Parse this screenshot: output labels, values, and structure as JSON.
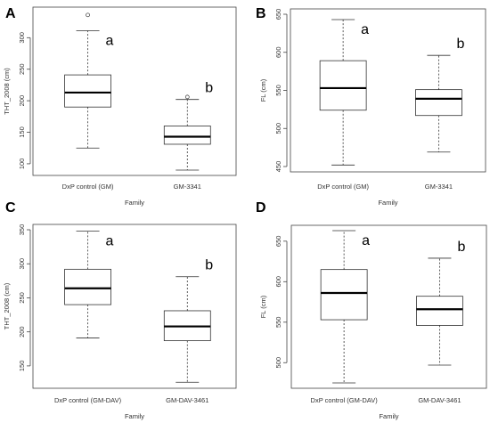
{
  "chart_data": [
    {
      "panel": "A",
      "type": "box",
      "xlabel": "Family",
      "ylabel": "THT_2008 (cm)",
      "categories": [
        "DxP control (GM)",
        "GM-3341"
      ],
      "yticks": [
        "100",
        "150",
        "200",
        "250",
        "300"
      ],
      "ylim": [
        90,
        340
      ],
      "boxes": [
        {
          "label": "DxP control (GM)",
          "whisker_low": 125,
          "q1": 190,
          "median": 213,
          "q3": 241,
          "whisker_high": 311,
          "outliers": [
            336
          ],
          "letter": "a"
        },
        {
          "label": "GM-3341",
          "whisker_low": 90,
          "q1": 131,
          "median": 143,
          "q3": 160,
          "whisker_high": 202,
          "outliers": [
            206
          ],
          "letter": "b"
        }
      ]
    },
    {
      "panel": "B",
      "type": "box",
      "xlabel": "Family",
      "ylabel": "FL (cm)",
      "categories": [
        "DxP control (GM)",
        "GM-3341"
      ],
      "yticks": [
        "450",
        "500",
        "550",
        "600",
        "650"
      ],
      "ylim": [
        450,
        650
      ],
      "boxes": [
        {
          "label": "DxP control (GM)",
          "whisker_low": 452,
          "q1": 524,
          "median": 553,
          "q3": 589,
          "whisker_high": 643,
          "outliers": [],
          "letter": "a"
        },
        {
          "label": "GM-3341",
          "whisker_low": 469,
          "q1": 517,
          "median": 539,
          "q3": 551,
          "whisker_high": 596,
          "outliers": [],
          "letter": "b"
        }
      ]
    },
    {
      "panel": "C",
      "type": "box",
      "xlabel": "Family",
      "ylabel": "THT_2008 (cm)",
      "categories": [
        "DxP control (GM-DAV)",
        "GM-DAV-3461"
      ],
      "yticks": [
        "150",
        "200",
        "250",
        "300",
        "350"
      ],
      "ylim": [
        125,
        350
      ],
      "boxes": [
        {
          "label": "DxP control (GM-DAV)",
          "whisker_low": 191,
          "q1": 240,
          "median": 264,
          "q3": 292,
          "whisker_high": 348,
          "outliers": [],
          "letter": "a"
        },
        {
          "label": "GM-DAV-3461",
          "whisker_low": 126,
          "q1": 187,
          "median": 208,
          "q3": 231,
          "whisker_high": 281,
          "outliers": [],
          "letter": "b"
        }
      ]
    },
    {
      "panel": "D",
      "type": "box",
      "xlabel": "Family",
      "ylabel": "FL (cm)",
      "categories": [
        "DxP control (GM-DAV)",
        "GM-DAV-3461"
      ],
      "yticks": [
        "500",
        "550",
        "600",
        "650"
      ],
      "ylim": [
        475,
        663
      ],
      "boxes": [
        {
          "label": "DxP control (GM-DAV)",
          "whisker_low": 475,
          "q1": 553,
          "median": 586,
          "q3": 615,
          "whisker_high": 663,
          "outliers": [],
          "letter": "a"
        },
        {
          "label": "GM-DAV-3461",
          "whisker_low": 497,
          "q1": 546,
          "median": 566,
          "q3": 582,
          "whisker_high": 629,
          "outliers": [],
          "letter": "b"
        }
      ]
    }
  ]
}
